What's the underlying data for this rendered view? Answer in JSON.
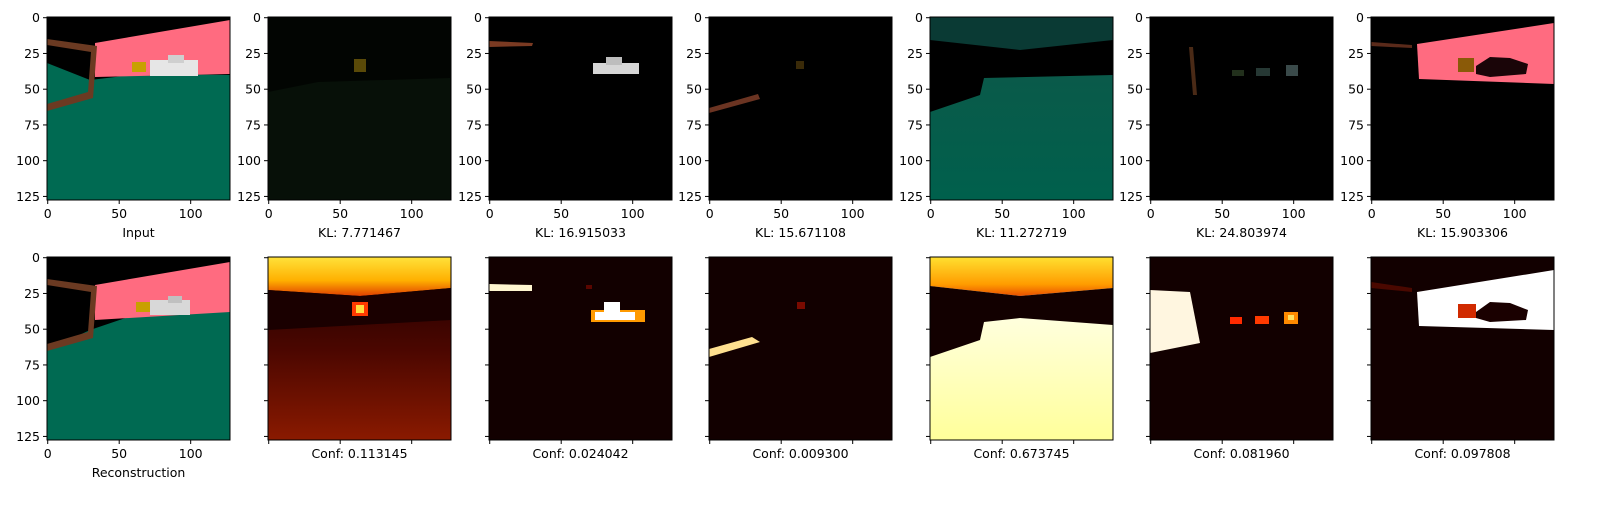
{
  "figure": {
    "columns": 7,
    "axis_range": [
      0,
      127
    ],
    "y_tick_labels": [
      "0",
      "25",
      "50",
      "75",
      "100",
      "125"
    ],
    "x_tick_labels": [
      "0",
      "50",
      "100"
    ],
    "top_row_captions": [
      "Input",
      "KL: 7.771467",
      "KL: 16.915033",
      "KL: 15.671108",
      "KL: 11.272719",
      "KL: 24.803974",
      "KL: 15.903306"
    ],
    "bottom_row_captions": [
      "Reconstruction",
      "Conf: 0.113145",
      "Conf: 0.024042",
      "Conf: 0.009300",
      "Conf: 0.673745",
      "Conf: 0.081960",
      "Conf: 0.097808"
    ]
  },
  "colors": {
    "sky": "#000000",
    "ground": "#006a52",
    "wall": "#ff6b80",
    "truck": "#d8d8d8",
    "heat_dark": "#120000"
  }
}
